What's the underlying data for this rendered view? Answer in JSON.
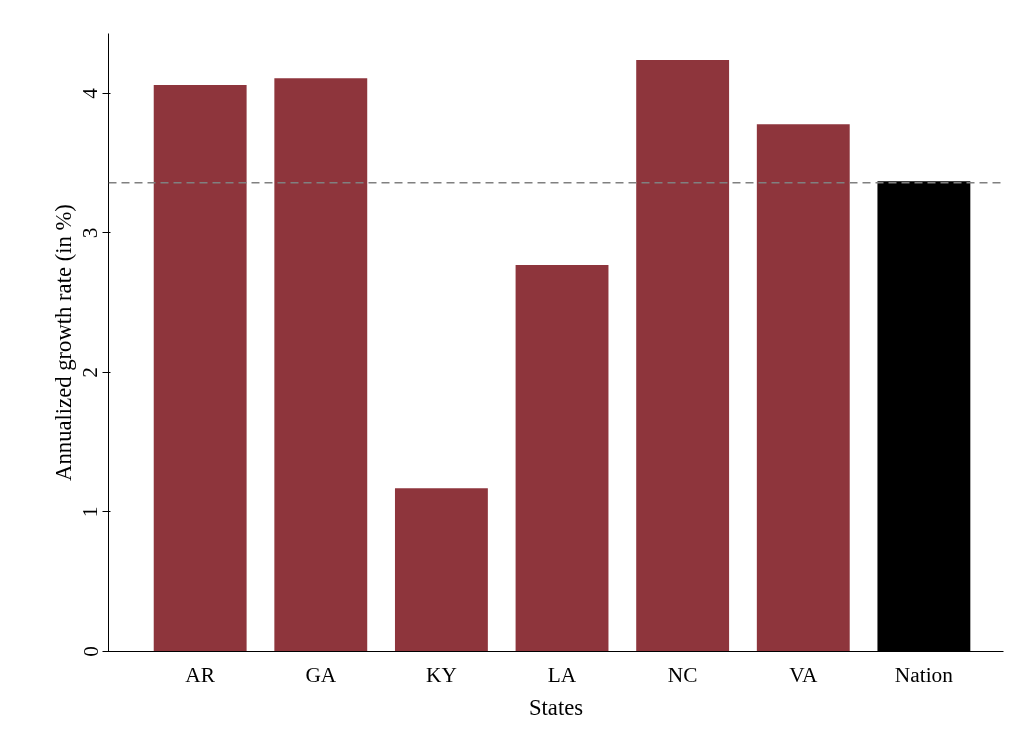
{
  "chart_data": {
    "type": "bar",
    "xlabel": "States",
    "ylabel": "Annualized growth rate (in %)",
    "categories": [
      "AR",
      "GA",
      "KY",
      "LA",
      "NC",
      "VA",
      "Nation"
    ],
    "values": [
      4.06,
      4.11,
      1.17,
      2.77,
      4.24,
      3.78,
      3.37
    ],
    "colors": [
      "#8e353c",
      "#8e353c",
      "#8e353c",
      "#8e353c",
      "#8e353c",
      "#8e353c",
      "#000000"
    ],
    "ylim": [
      0,
      4.43
    ],
    "yticks": [
      0,
      1,
      2,
      3,
      4
    ],
    "ref_lines": [
      {
        "axis": "y",
        "value": 3.36,
        "color": "#808080",
        "line_style": "dashed"
      }
    ],
    "grid": false
  }
}
